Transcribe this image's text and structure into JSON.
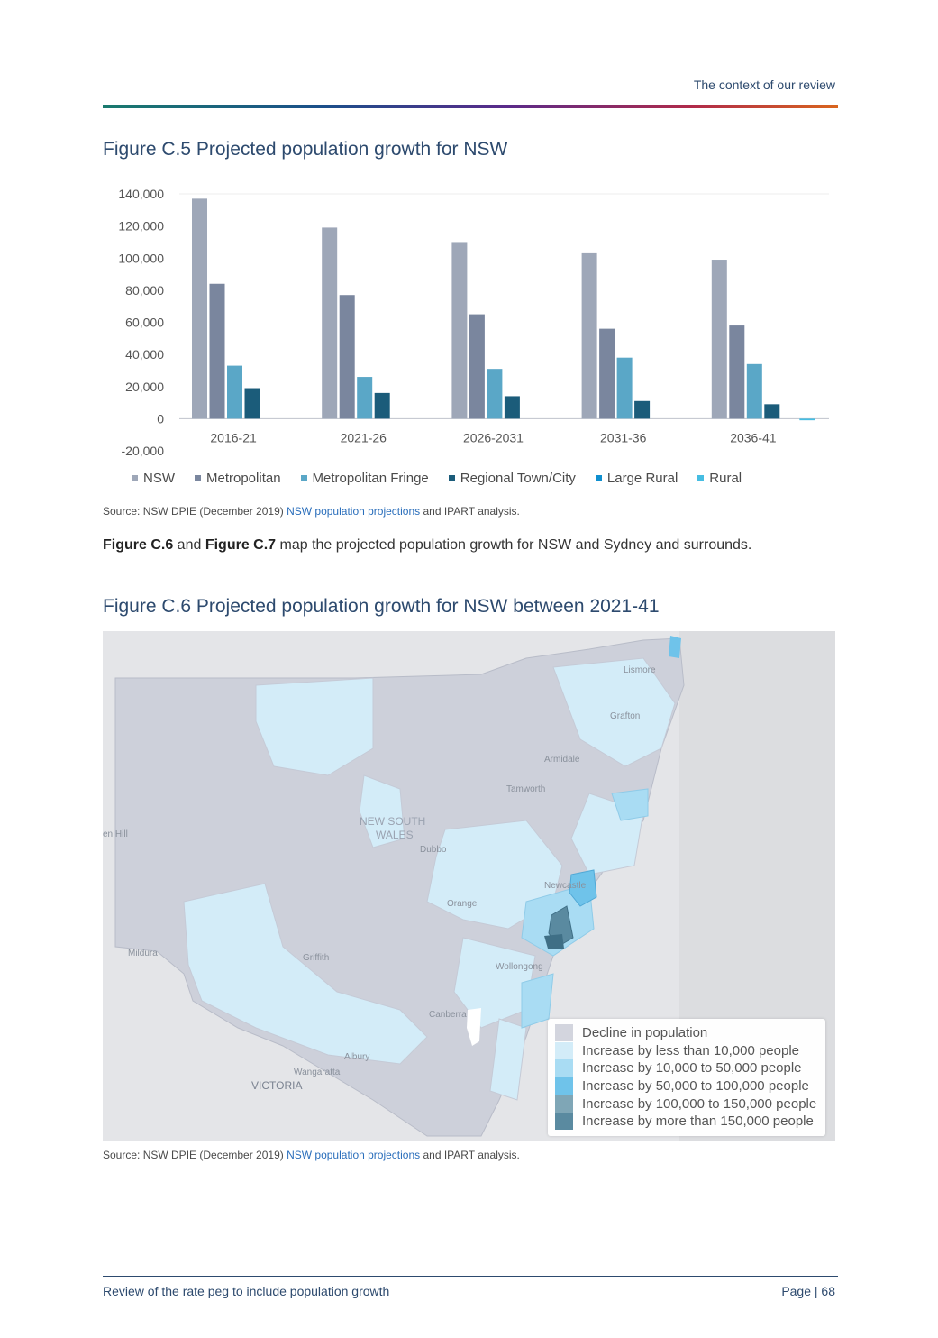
{
  "header": {
    "section_title": "The context of our review"
  },
  "figure5": {
    "title": "Figure C.5 Projected population growth for NSW",
    "source_prefix": "Source: NSW DPIE (December 2019) ",
    "source_link": "NSW population projections",
    "source_suffix": " and IPART analysis."
  },
  "chart_data": {
    "type": "bar",
    "categories": [
      "2016-21",
      "2021-26",
      "2026-2031",
      "2031-36",
      "2036-41"
    ],
    "series": [
      {
        "name": "NSW",
        "color": "#9ea7b8",
        "values": [
          137000,
          119000,
          110000,
          103000,
          99000
        ]
      },
      {
        "name": "Metropolitan",
        "color": "#7a869e",
        "values": [
          84000,
          77000,
          65000,
          56000,
          58000
        ]
      },
      {
        "name": "Metropolitan Fringe",
        "color": "#5aa7c7",
        "values": [
          33000,
          26000,
          31000,
          38000,
          34000
        ]
      },
      {
        "name": "Regional Town/City",
        "color": "#1b5c7a",
        "values": [
          19000,
          16000,
          14000,
          11000,
          9000
        ]
      },
      {
        "name": "Large Rural",
        "color": "#0f8fcf",
        "values": [
          0,
          0,
          0,
          0,
          0
        ]
      },
      {
        "name": "Rural",
        "color": "#46bde2",
        "values": [
          0,
          0,
          0,
          0,
          -1000
        ]
      }
    ],
    "yticks": [
      "140,000",
      "120,000",
      "100,000",
      "80,000",
      "60,000",
      "40,000",
      "20,000",
      "0",
      "-20,000"
    ],
    "ylim": [
      -20000,
      140000
    ],
    "legend_position": "bottom",
    "grid": true
  },
  "paragraph": {
    "fig6_ref": "Figure C.6",
    "and": " and ",
    "fig7_ref": "Figure C.7",
    "text": " map the projected population growth for NSW and Sydney and surrounds."
  },
  "figure6": {
    "title": "Figure C.6 Projected population growth for NSW between 2021-41",
    "source_prefix": "Source: NSW DPIE (December 2019) ",
    "source_link": "NSW population projections",
    "source_suffix": " and IPART analysis."
  },
  "map": {
    "place_labels": [
      {
        "name": "Lismore",
        "text": "Lismore"
      },
      {
        "name": "Grafton",
        "text": "Grafton"
      },
      {
        "name": "Armidale",
        "text": "Armidale"
      },
      {
        "name": "Tamworth",
        "text": "Tamworth"
      },
      {
        "name": "Dubbo",
        "text": "Dubbo"
      },
      {
        "name": "Newcastle",
        "text": "Newcastle"
      },
      {
        "name": "Orange",
        "text": "Orange"
      },
      {
        "name": "Griffith",
        "text": "Griffith"
      },
      {
        "name": "Wollongong",
        "text": "Wollongong"
      },
      {
        "name": "Canberra",
        "text": "Canberra"
      },
      {
        "name": "Albury",
        "text": "Albury"
      },
      {
        "name": "Wangaratta",
        "text": "Wangaratta"
      },
      {
        "name": "Mildura",
        "text": "Mildura"
      },
      {
        "name": "Broken-hill",
        "text": "en Hill"
      }
    ],
    "region_labels": {
      "nsw_line1": "NEW SOUTH",
      "nsw_line2": "WALES",
      "victoria": "VICTORIA"
    },
    "legend": [
      {
        "label": "Decline in population",
        "color": "#d3d5de"
      },
      {
        "label": "Increase by less than 10,000 people",
        "color": "#d3ecf8"
      },
      {
        "label": "Increase by 10,000 to 50,000 people",
        "color": "#a9dcf3"
      },
      {
        "label": "Increase by 50,000 to 100,000 people",
        "color": "#6fc3ea"
      },
      {
        "label": "Increase by 100,000 to 150,000 people",
        "color": "#7fa6b6"
      },
      {
        "label": "Increase by more than 150,000 people",
        "color": "#5a8aa0"
      }
    ]
  },
  "footer": {
    "left": "Review of the rate peg to include population growth",
    "right": "Page | 68"
  }
}
